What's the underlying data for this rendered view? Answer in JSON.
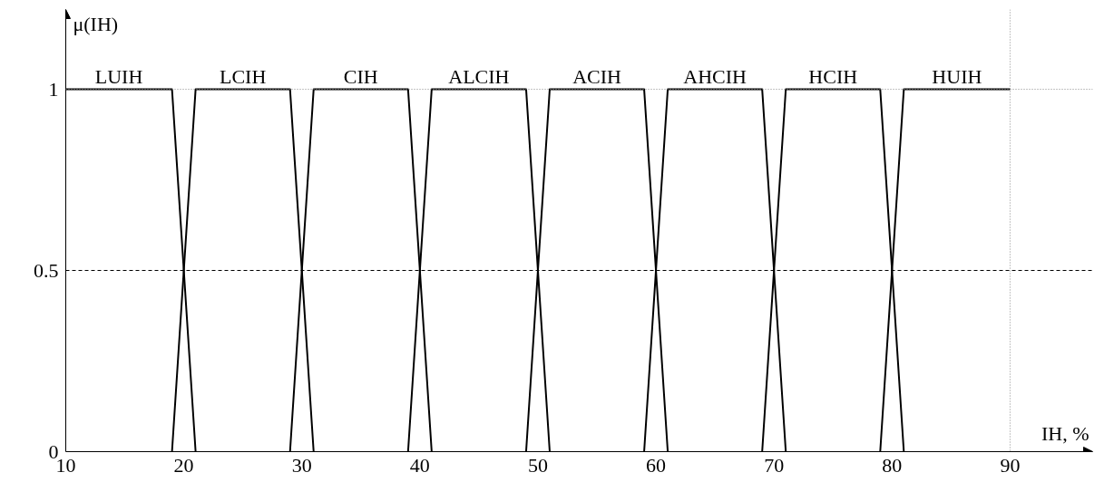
{
  "chart_data": {
    "type": "line",
    "xlabel": "IH, %",
    "ylabel": "μ(IH)",
    "xlim": [
      10,
      97
    ],
    "ylim": [
      0,
      1.22
    ],
    "xticks": [
      10,
      20,
      30,
      40,
      50,
      60,
      70,
      80,
      90
    ],
    "yticks": [
      0,
      0.5,
      1
    ],
    "grid": false,
    "marker": "none",
    "line_style": "solid",
    "series": [
      {
        "name": "LUIH",
        "color": "#000000",
        "x": [
          10,
          19,
          21
        ],
        "values": [
          1,
          1,
          0
        ]
      },
      {
        "name": "LCIH",
        "color": "#000000",
        "x": [
          19,
          21,
          29,
          31
        ],
        "values": [
          0,
          1,
          1,
          0
        ]
      },
      {
        "name": "CIH",
        "color": "#000000",
        "x": [
          29,
          31,
          39,
          41
        ],
        "values": [
          0,
          1,
          1,
          0
        ]
      },
      {
        "name": "ALCIH",
        "color": "#000000",
        "x": [
          39,
          41,
          49,
          51
        ],
        "values": [
          0,
          1,
          1,
          0
        ]
      },
      {
        "name": "ACIH",
        "color": "#000000",
        "x": [
          49,
          51,
          59,
          61
        ],
        "values": [
          0,
          1,
          1,
          0
        ]
      },
      {
        "name": "AHCIH",
        "color": "#000000",
        "x": [
          59,
          61,
          69,
          71
        ],
        "values": [
          0,
          1,
          1,
          0
        ]
      },
      {
        "name": "HCIH",
        "color": "#000000",
        "x": [
          69,
          71,
          79,
          81
        ],
        "values": [
          0,
          1,
          1,
          0
        ]
      },
      {
        "name": "HUIH",
        "color": "#000000",
        "x": [
          79,
          81,
          90
        ],
        "values": [
          0,
          1,
          1
        ]
      }
    ],
    "ref_lines": [
      {
        "axis": "y",
        "value": 0.5,
        "color": "#000000",
        "line_style": "dashed"
      },
      {
        "axis": "y",
        "value": 1,
        "color": "#888888",
        "line_style": "dotted"
      },
      {
        "axis": "x",
        "value": 90,
        "color": "#888888",
        "line_style": "dotted"
      }
    ]
  }
}
